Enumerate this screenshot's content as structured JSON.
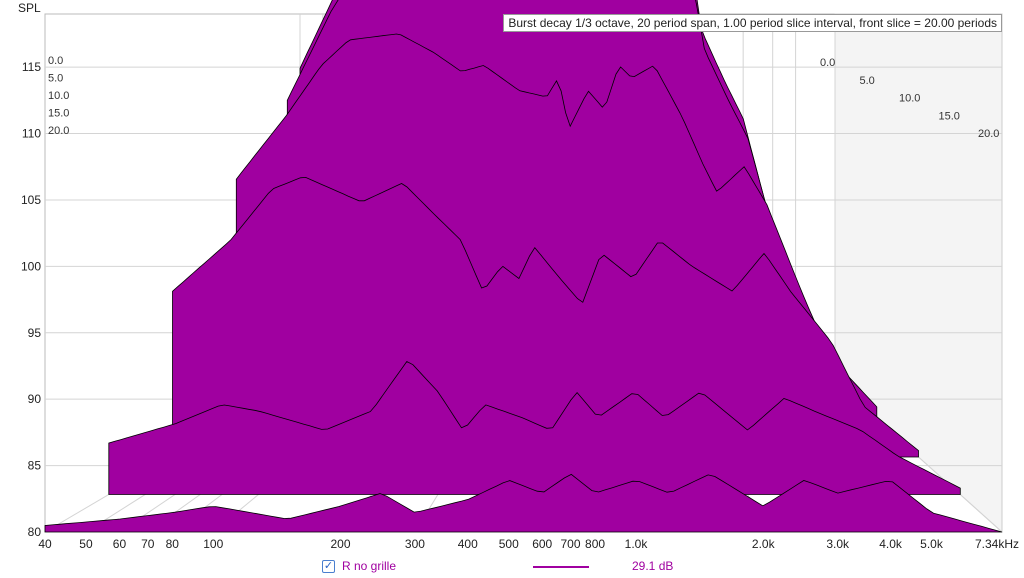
{
  "chart_data": {
    "type": "waterfall",
    "title": "Burst decay 1/3 octave, 20 period span, 1.00 period slice interval,  front slice = 20.00 periods",
    "ylabel": "SPL",
    "xunit": "kHz",
    "ylim": [
      80,
      119
    ],
    "xlim": [
      40,
      7340
    ],
    "y_ticks": [
      "80",
      "85",
      "90",
      "95",
      "100",
      "105",
      "110",
      "115"
    ],
    "x_ticks": [
      {
        "f": 40,
        "label": "40"
      },
      {
        "f": 50,
        "label": "50"
      },
      {
        "f": 60,
        "label": "60"
      },
      {
        "f": 70,
        "label": "70"
      },
      {
        "f": 80,
        "label": "80"
      },
      {
        "f": 100,
        "label": "100"
      },
      {
        "f": 200,
        "label": "200"
      },
      {
        "f": 300,
        "label": "300"
      },
      {
        "f": 400,
        "label": "400"
      },
      {
        "f": 500,
        "label": "500"
      },
      {
        "f": 600,
        "label": "600"
      },
      {
        "f": 700,
        "label": "700"
      },
      {
        "f": 800,
        "label": "800"
      },
      {
        "f": 1000,
        "label": "1.0k"
      },
      {
        "f": 2000,
        "label": "2.0k"
      },
      {
        "f": 3000,
        "label": "3.0k"
      },
      {
        "f": 4000,
        "label": "4.0k"
      },
      {
        "f": 5000,
        "label": "5.0k"
      },
      {
        "f": 7340,
        "label": "7.34kHz"
      }
    ],
    "depth_ticks": [
      "0.0",
      "5.0",
      "10.0",
      "15.0",
      "20.0"
    ],
    "grid": true,
    "series": [
      {
        "period": 0,
        "points": [
          [
            40,
            105
          ],
          [
            60,
            112
          ],
          [
            80,
            116
          ],
          [
            100,
            118
          ],
          [
            150,
            119
          ],
          [
            200,
            118.8
          ],
          [
            300,
            118.5
          ],
          [
            400,
            117.5
          ],
          [
            500,
            116.5
          ],
          [
            600,
            116.2
          ],
          [
            700,
            116
          ],
          [
            800,
            116.5
          ],
          [
            1000,
            117.5
          ],
          [
            1200,
            118
          ],
          [
            1500,
            117
          ],
          [
            1800,
            114
          ],
          [
            2000,
            108
          ],
          [
            2500,
            104
          ],
          [
            3000,
            101
          ],
          [
            4000,
            92
          ],
          [
            5000,
            86
          ],
          [
            7340,
            82
          ]
        ]
      },
      {
        "period": 1,
        "points": [
          [
            40,
            103
          ],
          [
            60,
            110
          ],
          [
            80,
            114
          ],
          [
            100,
            116.2
          ],
          [
            150,
            117.5
          ],
          [
            200,
            117.3
          ],
          [
            300,
            116.8
          ],
          [
            400,
            116
          ],
          [
            500,
            115
          ],
          [
            550,
            114.5
          ],
          [
            600,
            115
          ],
          [
            700,
            114.8
          ],
          [
            800,
            115
          ],
          [
            1000,
            116
          ],
          [
            1200,
            116.5
          ],
          [
            1500,
            115.5
          ],
          [
            1800,
            112
          ],
          [
            2000,
            107
          ],
          [
            2500,
            103
          ],
          [
            3000,
            100
          ],
          [
            4000,
            91
          ],
          [
            5000,
            85
          ],
          [
            7340,
            81.5
          ]
        ]
      },
      {
        "period": 5,
        "points": [
          [
            40,
            99
          ],
          [
            60,
            104
          ],
          [
            80,
            108
          ],
          [
            100,
            110
          ],
          [
            150,
            110.5
          ],
          [
            200,
            109
          ],
          [
            250,
            107.5
          ],
          [
            300,
            108
          ],
          [
            400,
            106
          ],
          [
            500,
            105.5
          ],
          [
            550,
            107
          ],
          [
            600,
            103
          ],
          [
            700,
            106
          ],
          [
            800,
            104.5
          ],
          [
            900,
            108
          ],
          [
            1000,
            107
          ],
          [
            1200,
            108
          ],
          [
            1500,
            104
          ],
          [
            1800,
            100
          ],
          [
            2000,
            98
          ],
          [
            2500,
            100
          ],
          [
            3000,
            97
          ],
          [
            4000,
            90
          ],
          [
            5000,
            85
          ],
          [
            7340,
            81
          ]
        ]
      },
      {
        "period": 10,
        "points": [
          [
            40,
            93
          ],
          [
            60,
            97
          ],
          [
            80,
            101
          ],
          [
            100,
            102
          ],
          [
            150,
            100
          ],
          [
            200,
            101.5
          ],
          [
            250,
            99
          ],
          [
            300,
            97
          ],
          [
            350,
            93
          ],
          [
            400,
            95
          ],
          [
            450,
            94
          ],
          [
            500,
            96.5
          ],
          [
            600,
            94
          ],
          [
            700,
            92
          ],
          [
            800,
            96
          ],
          [
            1000,
            94
          ],
          [
            1200,
            97
          ],
          [
            1500,
            95
          ],
          [
            2000,
            93
          ],
          [
            2500,
            96
          ],
          [
            3000,
            93
          ],
          [
            4000,
            89
          ],
          [
            5000,
            84
          ],
          [
            7340,
            80.5
          ]
        ]
      },
      {
        "period": 15,
        "points": [
          [
            40,
            84
          ],
          [
            60,
            85.5
          ],
          [
            80,
            87
          ],
          [
            100,
            86.5
          ],
          [
            150,
            85
          ],
          [
            200,
            86.5
          ],
          [
            250,
            90.5
          ],
          [
            300,
            88
          ],
          [
            350,
            85
          ],
          [
            400,
            87
          ],
          [
            500,
            86
          ],
          [
            600,
            85
          ],
          [
            700,
            88
          ],
          [
            800,
            86
          ],
          [
            1000,
            88
          ],
          [
            1200,
            86
          ],
          [
            1500,
            88
          ],
          [
            2000,
            85
          ],
          [
            2500,
            87.5
          ],
          [
            3000,
            86.5
          ],
          [
            4000,
            85
          ],
          [
            5000,
            83
          ],
          [
            7340,
            80.5
          ]
        ]
      },
      {
        "period": 20,
        "points": [
          [
            40,
            80.5
          ],
          [
            60,
            81
          ],
          [
            80,
            81.5
          ],
          [
            100,
            82
          ],
          [
            150,
            81
          ],
          [
            200,
            82
          ],
          [
            250,
            83
          ],
          [
            300,
            81.5
          ],
          [
            400,
            82.5
          ],
          [
            500,
            84
          ],
          [
            600,
            83
          ],
          [
            700,
            84.5
          ],
          [
            800,
            83
          ],
          [
            1000,
            84
          ],
          [
            1200,
            83
          ],
          [
            1500,
            84.5
          ],
          [
            2000,
            82
          ],
          [
            2500,
            84
          ],
          [
            3000,
            83
          ],
          [
            4000,
            84
          ],
          [
            5000,
            81.5
          ],
          [
            7340,
            80
          ]
        ]
      }
    ]
  },
  "legend": {
    "checked_mark": "✓",
    "name": "R no grille",
    "value": "29.1 dB"
  },
  "colors": {
    "fill": "#a000a0",
    "outline": "#000000",
    "grid": "#d4d4d4",
    "back_wall": "#f4f4f4"
  }
}
